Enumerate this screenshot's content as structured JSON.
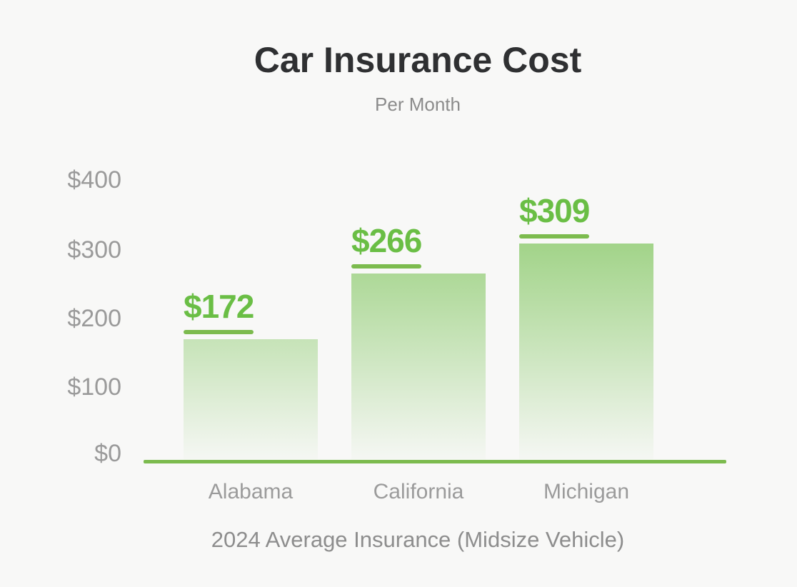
{
  "chart_data": {
    "type": "bar",
    "title": "Car Insurance Cost",
    "subtitle": "Per Month",
    "caption": "2024 Average Insurance (Midsize Vehicle)",
    "categories": [
      "Alabama",
      "California",
      "Michigan"
    ],
    "values": [
      172,
      266,
      309
    ],
    "value_labels": [
      "$172",
      "$266",
      "$309"
    ],
    "y_ticks": [
      {
        "label": "$400",
        "value": 400
      },
      {
        "label": "$300",
        "value": 300
      },
      {
        "label": "$200",
        "value": 200
      },
      {
        "label": "$100",
        "value": 100
      },
      {
        "label": "$0",
        "value": 0
      }
    ],
    "ylim": [
      0,
      400
    ],
    "xlabel": "",
    "ylabel": "",
    "grid": false,
    "legend": "none",
    "colors": {
      "background": "#f8f8f7",
      "title_text": "#2f3032",
      "muted_text": "#9a9a9a",
      "accent_green": "#6abe45",
      "line_green": "#7cbb4e",
      "bar_gradient_top": "#9dd27f",
      "bar_gradient_bottom": "#f4f6f1"
    }
  }
}
